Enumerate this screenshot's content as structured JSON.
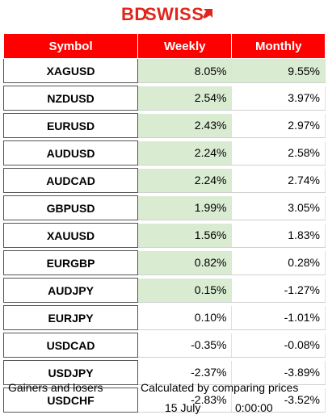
{
  "logo": {
    "brand_part1": "BD",
    "brand_part2": "SWISS",
    "brand_color": "#e1251b"
  },
  "table": {
    "headers": {
      "symbol": "Symbol",
      "weekly": "Weekly",
      "monthly": "Monthly"
    },
    "header_color": "#ff0000",
    "positive_color": "#d9ecd2",
    "rows": [
      {
        "symbol": "XAGUSD",
        "weekly": "8.05%",
        "monthly": "9.55%",
        "weekly_pos": true,
        "monthly_pos": true
      },
      {
        "symbol": "NZDUSD",
        "weekly": "2.54%",
        "monthly": "3.97%",
        "weekly_pos": true,
        "monthly_pos": false
      },
      {
        "symbol": "EURUSD",
        "weekly": "2.43%",
        "monthly": "2.97%",
        "weekly_pos": true,
        "monthly_pos": false
      },
      {
        "symbol": "AUDUSD",
        "weekly": "2.24%",
        "monthly": "2.58%",
        "weekly_pos": true,
        "monthly_pos": false
      },
      {
        "symbol": "AUDCAD",
        "weekly": "2.24%",
        "monthly": "2.74%",
        "weekly_pos": true,
        "monthly_pos": false
      },
      {
        "symbol": "GBPUSD",
        "weekly": "1.99%",
        "monthly": "3.05%",
        "weekly_pos": true,
        "monthly_pos": false
      },
      {
        "symbol": "XAUUSD",
        "weekly": "1.56%",
        "monthly": "1.83%",
        "weekly_pos": true,
        "monthly_pos": false
      },
      {
        "symbol": "EURGBP",
        "weekly": "0.82%",
        "monthly": "0.28%",
        "weekly_pos": true,
        "monthly_pos": false
      },
      {
        "symbol": "AUDJPY",
        "weekly": "0.15%",
        "monthly": "-1.27%",
        "weekly_pos": true,
        "monthly_pos": false
      },
      {
        "symbol": "EURJPY",
        "weekly": "0.10%",
        "monthly": "-1.01%",
        "weekly_pos": false,
        "monthly_pos": false
      },
      {
        "symbol": "USDCAD",
        "weekly": "-0.35%",
        "monthly": "-0.08%",
        "weekly_pos": false,
        "monthly_pos": false
      },
      {
        "symbol": "USDJPY",
        "weekly": "-2.37%",
        "monthly": "-3.89%",
        "weekly_pos": false,
        "monthly_pos": false
      },
      {
        "symbol": "USDCHF",
        "weekly": "-2.83%",
        "monthly": "-3.52%",
        "weekly_pos": false,
        "monthly_pos": false
      }
    ]
  },
  "footer": {
    "left_note": "Gainers and losers",
    "right_note": "Calculated by comparing prices",
    "date": "15 July",
    "time": "0:00:00"
  }
}
